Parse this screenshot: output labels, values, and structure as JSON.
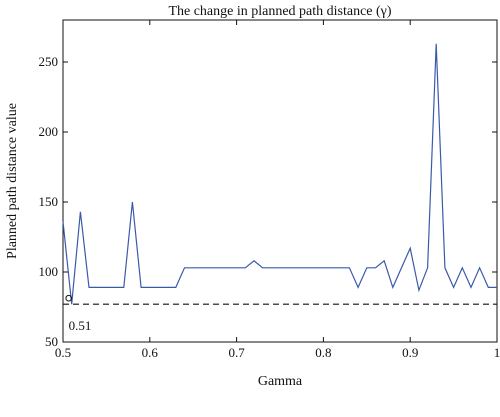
{
  "chart_data": {
    "type": "line",
    "title": "The change in planned path distance (γ)",
    "xlabel": "Gamma",
    "ylabel": "Planned path distance value",
    "xlim": [
      0.5,
      1.0
    ],
    "ylim": [
      50,
      280
    ],
    "xticks": [
      0.5,
      0.6,
      0.7,
      0.8,
      0.9,
      1.0
    ],
    "xtick_labels": [
      "0.5",
      "0.6",
      "0.7",
      "0.8",
      "0.9",
      "1"
    ],
    "yticks": [
      50,
      100,
      150,
      200,
      250
    ],
    "ytick_labels": [
      "50",
      "100",
      "150",
      "200",
      "250"
    ],
    "grid": false,
    "series": [
      {
        "color": "#3a5aa8",
        "x": [
          0.5,
          0.51,
          0.52,
          0.53,
          0.54,
          0.55,
          0.56,
          0.57,
          0.58,
          0.59,
          0.6,
          0.61,
          0.62,
          0.63,
          0.64,
          0.65,
          0.66,
          0.67,
          0.68,
          0.69,
          0.7,
          0.71,
          0.72,
          0.73,
          0.74,
          0.75,
          0.76,
          0.77,
          0.78,
          0.79,
          0.8,
          0.81,
          0.82,
          0.83,
          0.84,
          0.85,
          0.86,
          0.87,
          0.88,
          0.89,
          0.9,
          0.91,
          0.92,
          0.93,
          0.94,
          0.95,
          0.96,
          0.97,
          0.98,
          0.99,
          1.0
        ],
        "y": [
          136,
          77,
          143,
          89,
          89,
          89,
          89,
          89,
          150,
          89,
          89,
          89,
          89,
          89,
          103,
          103,
          103,
          103,
          103,
          103,
          103,
          103,
          108,
          103,
          103,
          103,
          103,
          103,
          103,
          103,
          103,
          103,
          103,
          103,
          89,
          103,
          103,
          108,
          89,
          103,
          117,
          87,
          103,
          263,
          103,
          89,
          103,
          89,
          103,
          89,
          89
        ]
      }
    ],
    "reference_line": {
      "y": 77,
      "style": "dashed",
      "color": "#111111"
    },
    "annotation": {
      "marker": "o",
      "x": 0.51,
      "y": 77,
      "label": "0.51"
    }
  }
}
